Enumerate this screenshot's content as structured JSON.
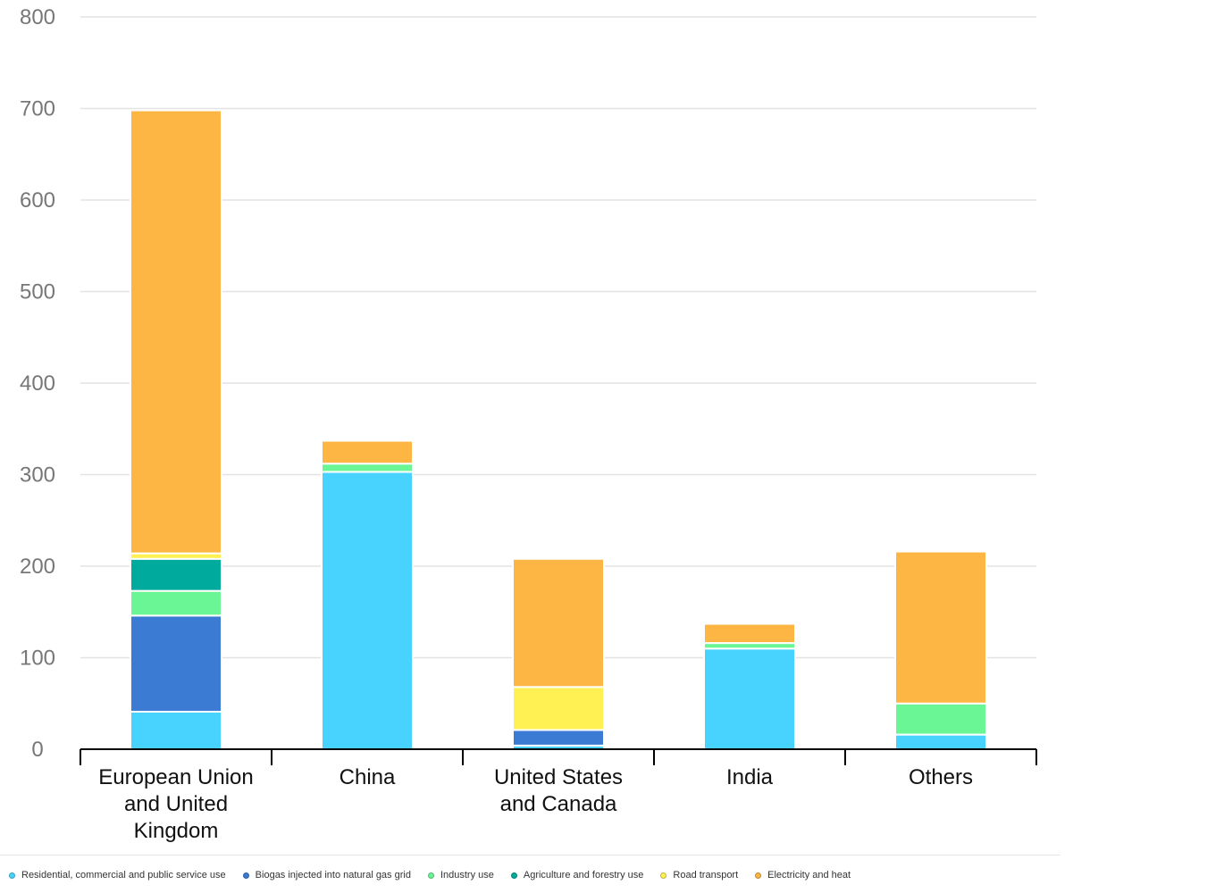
{
  "chart_data": {
    "type": "bar",
    "stacked": true,
    "categories": [
      "European Union and United Kingdom",
      "China",
      "United States and Canada",
      "India",
      "Others"
    ],
    "series": [
      {
        "name": "Residential, commercial and public service use",
        "color": "#48D3FF",
        "values": [
          41,
          303,
          4,
          110,
          16
        ]
      },
      {
        "name": "Biogas injected into natural gas grid",
        "color": "#3C7BD4",
        "values": [
          105,
          0,
          17,
          0,
          0
        ]
      },
      {
        "name": "Industry use",
        "color": "#6AF695",
        "values": [
          27,
          9,
          0,
          6,
          34
        ]
      },
      {
        "name": "Agriculture and forestry use",
        "color": "#00AB9E",
        "values": [
          35,
          0,
          0,
          0,
          0
        ]
      },
      {
        "name": "Road transport",
        "color": "#FFF154",
        "values": [
          6,
          0,
          47,
          0,
          0
        ]
      },
      {
        "name": "Electricity and heat",
        "color": "#FDB643",
        "values": [
          484,
          25,
          140,
          21,
          166
        ]
      }
    ],
    "title": "",
    "xlabel": "",
    "ylabel": "",
    "ylim": [
      0,
      800
    ],
    "yticks": [
      0,
      100,
      200,
      300,
      400,
      500,
      600,
      700,
      800
    ],
    "grid": true,
    "legend_position": "bottom"
  }
}
